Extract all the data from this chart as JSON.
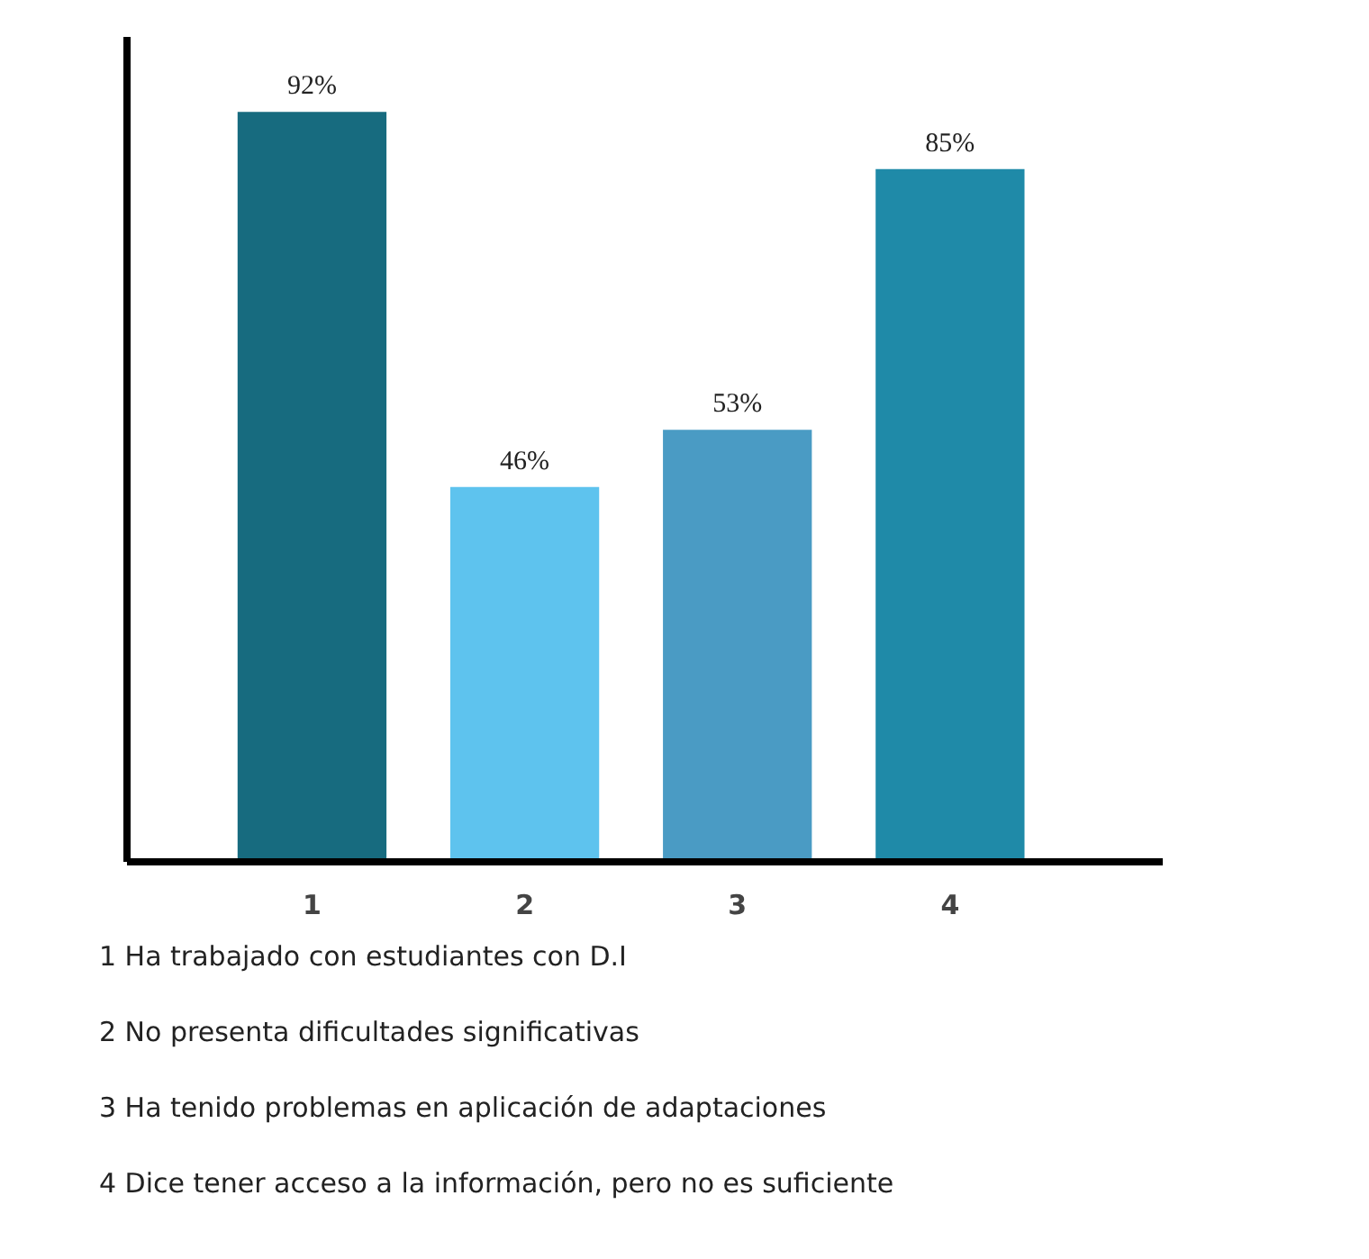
{
  "chart_data": {
    "type": "bar",
    "categories": [
      "1",
      "2",
      "3",
      "4"
    ],
    "values": [
      92,
      46,
      53,
      85
    ],
    "colors": [
      "#176b7f",
      "#5ec3ee",
      "#4a9bc4",
      "#1f8aa8"
    ],
    "value_labels": [
      "92%",
      "46%",
      "53%",
      "85%"
    ],
    "grid": false,
    "annotations": [
      "1  Ha trabajado con estudiantes con D.I",
      "2  No presenta dificultades significativas",
      "3  Ha tenido problemas en aplicación de adaptaciones",
      "4  Dice tener acceso a la información, pero no es suficiente"
    ]
  }
}
